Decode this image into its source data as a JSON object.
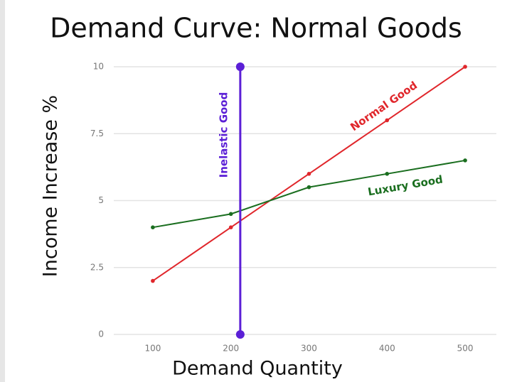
{
  "chart_data": {
    "type": "line",
    "title": "Demand Curve: Normal Goods",
    "x_label": "Demand Quantity",
    "y_label": "Income Increase %",
    "xlim": [
      50,
      540
    ],
    "xticks": [
      100,
      200,
      300,
      400,
      500
    ],
    "ylim": [
      0,
      10
    ],
    "yticks": [
      0,
      2.5,
      5,
      7.5,
      10
    ],
    "grid": true,
    "series": [
      {
        "name": "Normal Good",
        "color": "#e0262b",
        "x": [
          100,
          200,
          300,
          400,
          500
        ],
        "values": [
          2,
          4,
          6,
          8,
          10
        ]
      },
      {
        "name": "Luxury Good",
        "color": "#1a6e1f",
        "x": [
          100,
          200,
          300,
          400,
          500
        ],
        "values": [
          4,
          4.5,
          5.5,
          6,
          6.5
        ]
      },
      {
        "name": "Inelastic Good",
        "color": "#5b1fd6",
        "x": [
          212,
          212
        ],
        "values": [
          0,
          10
        ]
      }
    ]
  }
}
